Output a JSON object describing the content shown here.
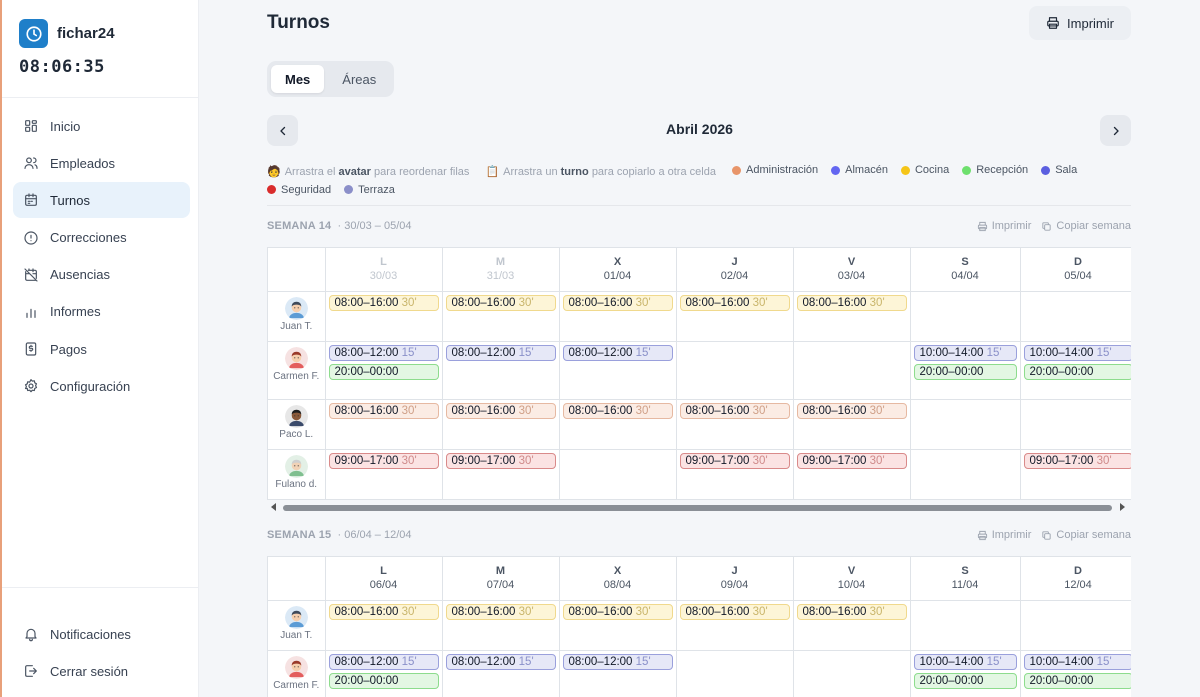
{
  "app": {
    "name": "fichar24",
    "clock": "08:06:35"
  },
  "sidebar": {
    "items": [
      {
        "label": "Inicio",
        "icon": "grid-icon"
      },
      {
        "label": "Empleados",
        "icon": "users-icon"
      },
      {
        "label": "Turnos",
        "icon": "calendar-icon",
        "active": true
      },
      {
        "label": "Correcciones",
        "icon": "alert-circle-icon"
      },
      {
        "label": "Ausencias",
        "icon": "calendar-off-icon"
      },
      {
        "label": "Informes",
        "icon": "bar-chart-icon"
      },
      {
        "label": "Pagos",
        "icon": "receipt-icon"
      },
      {
        "label": "Configuración",
        "icon": "gear-icon"
      }
    ],
    "bottom": [
      {
        "label": "Notificaciones",
        "icon": "bell-icon"
      },
      {
        "label": "Cerrar sesión",
        "icon": "logout-icon"
      }
    ]
  },
  "header": {
    "title": "Turnos",
    "print_label": "Imprimir"
  },
  "view_tabs": [
    "Mes",
    "Áreas"
  ],
  "month": "Abril 2026",
  "legend": {
    "hint1_pre": "Arrastra el",
    "hint1_bold": "avatar",
    "hint1_post": "para reordenar filas",
    "hint2_pre": "Arrastra un",
    "hint2_bold": "turno",
    "hint2_post": "para copiarlo a otra celda",
    "areas": [
      {
        "name": "Administración",
        "color": "#e8956a"
      },
      {
        "name": "Almacén",
        "color": "#6366f1"
      },
      {
        "name": "Cocina",
        "color": "#f5c518"
      },
      {
        "name": "Recepción",
        "color": "#6ee06e"
      },
      {
        "name": "Sala",
        "color": "#5b5fe0"
      },
      {
        "name": "Seguridad",
        "color": "#d92c2c"
      },
      {
        "name": "Terraza",
        "color": "#8b8fc9"
      }
    ]
  },
  "week_actions": {
    "print": "Imprimir",
    "copy": "Copiar semana"
  },
  "weeks": [
    {
      "title": "SEMANA 14",
      "range": "· 30/03 – 05/04",
      "days": [
        {
          "l": "L",
          "d": "30/03",
          "past": true
        },
        {
          "l": "M",
          "d": "31/03",
          "past": true
        },
        {
          "l": "X",
          "d": "01/04"
        },
        {
          "l": "J",
          "d": "02/04"
        },
        {
          "l": "V",
          "d": "03/04"
        },
        {
          "l": "S",
          "d": "04/04"
        },
        {
          "l": "D",
          "d": "05/04"
        }
      ],
      "rows": [
        {
          "name": "Juan T.",
          "avatar": "juan",
          "h": 50,
          "cells": [
            [
              {
                "t": "08:00–16:00",
                "b": "30'",
                "a": "cocina"
              }
            ],
            [
              {
                "t": "08:00–16:00",
                "b": "30'",
                "a": "cocina"
              }
            ],
            [
              {
                "t": "08:00–16:00",
                "b": "30'",
                "a": "cocina"
              }
            ],
            [
              {
                "t": "08:00–16:00",
                "b": "30'",
                "a": "cocina"
              }
            ],
            [
              {
                "t": "08:00–16:00",
                "b": "30'",
                "a": "cocina"
              }
            ],
            [],
            []
          ]
        },
        {
          "name": "Carmen F.",
          "avatar": "carmen",
          "h": 58,
          "cells": [
            [
              {
                "t": "08:00–12:00",
                "b": "15'",
                "a": "almacen"
              },
              {
                "t": "20:00–00:00",
                "b": "",
                "a": "recep"
              }
            ],
            [
              {
                "t": "08:00–12:00",
                "b": "15'",
                "a": "almacen"
              }
            ],
            [
              {
                "t": "08:00–12:00",
                "b": "15'",
                "a": "almacen"
              }
            ],
            [],
            [],
            [
              {
                "t": "10:00–14:00",
                "b": "15'",
                "a": "almacen"
              },
              {
                "t": "20:00–00:00",
                "b": "",
                "a": "recep"
              }
            ],
            [
              {
                "t": "10:00–14:00",
                "b": "15'",
                "a": "almacen"
              },
              {
                "t": "20:00–00:00",
                "b": "",
                "a": "recep"
              }
            ]
          ]
        },
        {
          "name": "Paco L.",
          "avatar": "paco",
          "h": 50,
          "cells": [
            [
              {
                "t": "08:00–16:00",
                "b": "30'",
                "a": "admin"
              }
            ],
            [
              {
                "t": "08:00–16:00",
                "b": "30'",
                "a": "admin"
              }
            ],
            [
              {
                "t": "08:00–16:00",
                "b": "30'",
                "a": "admin"
              }
            ],
            [
              {
                "t": "08:00–16:00",
                "b": "30'",
                "a": "admin"
              }
            ],
            [
              {
                "t": "08:00–16:00",
                "b": "30'",
                "a": "admin"
              }
            ],
            [],
            []
          ]
        },
        {
          "name": "Fulano d.",
          "avatar": "fulano",
          "h": 50,
          "cells": [
            [
              {
                "t": "09:00–17:00",
                "b": "30'",
                "a": "seg"
              }
            ],
            [
              {
                "t": "09:00–17:00",
                "b": "30'",
                "a": "seg"
              }
            ],
            [],
            [
              {
                "t": "09:00–17:00",
                "b": "30'",
                "a": "seg"
              }
            ],
            [
              {
                "t": "09:00–17:00",
                "b": "30'",
                "a": "seg"
              }
            ],
            [],
            [
              {
                "t": "09:00–17:00",
                "b": "30'",
                "a": "seg"
              }
            ]
          ]
        }
      ]
    },
    {
      "title": "SEMANA 15",
      "range": "· 06/04 – 12/04",
      "days": [
        {
          "l": "L",
          "d": "06/04"
        },
        {
          "l": "M",
          "d": "07/04"
        },
        {
          "l": "X",
          "d": "08/04"
        },
        {
          "l": "J",
          "d": "09/04"
        },
        {
          "l": "V",
          "d": "10/04"
        },
        {
          "l": "S",
          "d": "11/04"
        },
        {
          "l": "D",
          "d": "12/04"
        }
      ],
      "rows": [
        {
          "name": "Juan T.",
          "avatar": "juan",
          "h": 50,
          "cells": [
            [
              {
                "t": "08:00–16:00",
                "b": "30'",
                "a": "cocina"
              }
            ],
            [
              {
                "t": "08:00–16:00",
                "b": "30'",
                "a": "cocina"
              }
            ],
            [
              {
                "t": "08:00–16:00",
                "b": "30'",
                "a": "cocina"
              }
            ],
            [
              {
                "t": "08:00–16:00",
                "b": "30'",
                "a": "cocina"
              }
            ],
            [
              {
                "t": "08:00–16:00",
                "b": "30'",
                "a": "cocina"
              }
            ],
            [],
            []
          ]
        },
        {
          "name": "Carmen F.",
          "avatar": "carmen",
          "h": 58,
          "cells": [
            [
              {
                "t": "08:00–12:00",
                "b": "15'",
                "a": "almacen"
              },
              {
                "t": "20:00–00:00",
                "b": "",
                "a": "recep"
              }
            ],
            [
              {
                "t": "08:00–12:00",
                "b": "15'",
                "a": "almacen"
              }
            ],
            [
              {
                "t": "08:00–12:00",
                "b": "15'",
                "a": "almacen"
              }
            ],
            [],
            [],
            [
              {
                "t": "10:00–14:00",
                "b": "15'",
                "a": "almacen"
              },
              {
                "t": "20:00–00:00",
                "b": "",
                "a": "recep"
              }
            ],
            [
              {
                "t": "10:00–14:00",
                "b": "15'",
                "a": "almacen"
              },
              {
                "t": "20:00–00:00",
                "b": "",
                "a": "recep"
              }
            ]
          ]
        }
      ]
    }
  ]
}
